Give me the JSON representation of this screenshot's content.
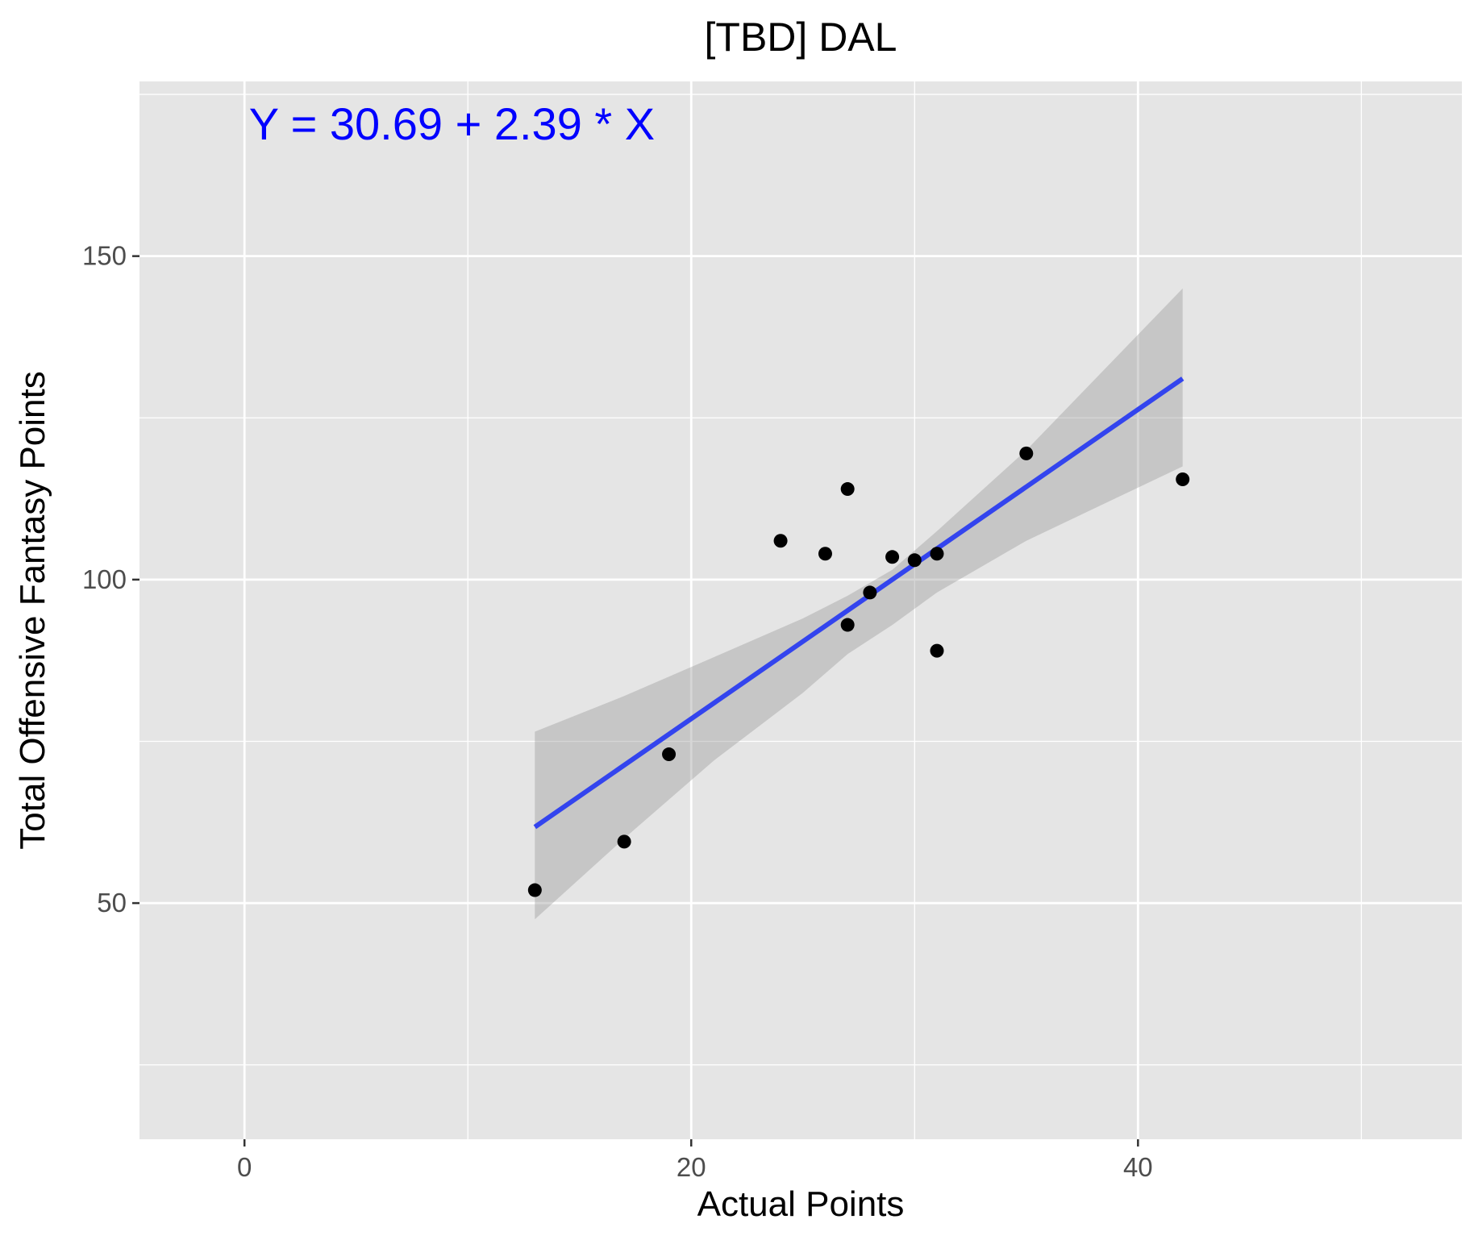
{
  "chart_data": {
    "type": "scatter",
    "title": "[TBD] DAL",
    "xlabel": "Actual Points",
    "ylabel": "Total Offensive Fantasy Points",
    "xlim": [
      -4.7,
      54.5
    ],
    "ylim": [
      13.5,
      177
    ],
    "x_ticks": [
      0,
      20,
      40
    ],
    "y_ticks": [
      50,
      100,
      150
    ],
    "x_minor_grid": [
      10,
      30,
      50
    ],
    "y_minor_grid": [
      25,
      75,
      125,
      175
    ],
    "grid": true,
    "legend": "none",
    "annotation": {
      "text": "Y = 30.69 + 2.39 * X",
      "x": 0.2,
      "y": 168,
      "color": "#0000ff"
    },
    "points": [
      {
        "x": 13,
        "y": 52
      },
      {
        "x": 17,
        "y": 59.5
      },
      {
        "x": 19,
        "y": 73
      },
      {
        "x": 24,
        "y": 106
      },
      {
        "x": 26,
        "y": 104
      },
      {
        "x": 27,
        "y": 114
      },
      {
        "x": 27,
        "y": 93
      },
      {
        "x": 28,
        "y": 98
      },
      {
        "x": 29,
        "y": 103.5
      },
      {
        "x": 30,
        "y": 103
      },
      {
        "x": 31,
        "y": 104
      },
      {
        "x": 31,
        "y": 89
      },
      {
        "x": 35,
        "y": 119.5
      },
      {
        "x": 42,
        "y": 115.5
      }
    ],
    "fit_line": {
      "intercept": 30.69,
      "slope": 2.39,
      "x_range": [
        13,
        42
      ],
      "color": "#3344ee"
    },
    "confidence_band": {
      "x": [
        13,
        17,
        21,
        25,
        27,
        29,
        31,
        35,
        42
      ],
      "lower": [
        47.5,
        60,
        72,
        82.5,
        88.5,
        93,
        98,
        106,
        117.5
      ],
      "upper": [
        76.5,
        82,
        88,
        94,
        97.5,
        101.5,
        107.5,
        120,
        145
      ],
      "color": "#999999"
    },
    "colors": {
      "panel_background": "#e5e5e5",
      "grid_line": "#ffffff",
      "point": "#000000",
      "tick_label": "#4d4d4d"
    }
  }
}
